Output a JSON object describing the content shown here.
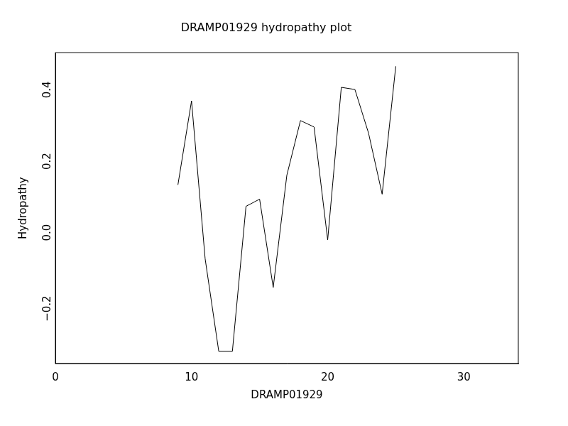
{
  "chart_data": {
    "type": "line",
    "title": "DRAMP01929 hydropathy plot",
    "x_label": "DRAMP01929",
    "y_label": "Hydropathy",
    "x": [
      9,
      10,
      11,
      12,
      13,
      14,
      15,
      16,
      17,
      18,
      19,
      20,
      21,
      22,
      23,
      24,
      25
    ],
    "values": [
      0.11,
      0.345,
      -0.097,
      -0.356,
      -0.356,
      0.05,
      0.07,
      -0.177,
      0.137,
      0.29,
      0.272,
      -0.044,
      0.383,
      0.377,
      0.255,
      0.084,
      0.442
    ],
    "color": "#000000",
    "xlim": [
      0,
      34
    ],
    "xticks": [
      0,
      10,
      20,
      30
    ],
    "ylim": [
      -0.39,
      0.48
    ],
    "yticks": [
      {
        "value": -0.2,
        "label": "−0.2"
      },
      {
        "value": 0,
        "label": "0.0"
      },
      0.2,
      0.4
    ],
    "grid": false
  }
}
